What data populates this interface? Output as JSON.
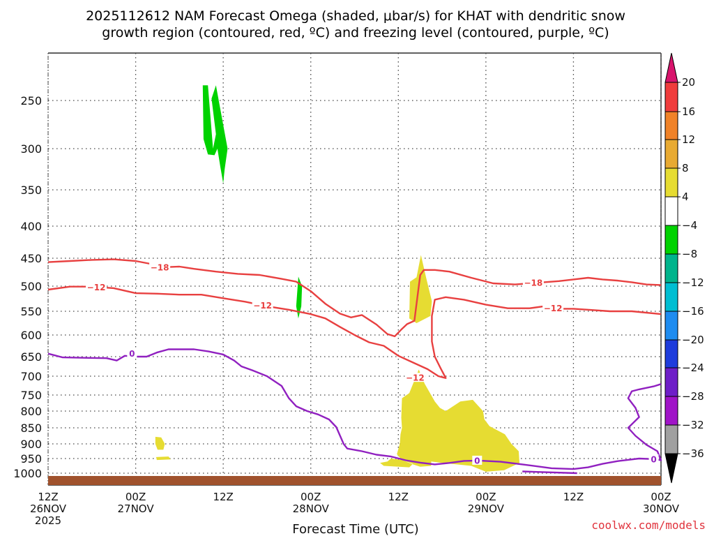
{
  "chart_data": {
    "type": "heatmap",
    "title_line1": "2025112612 NAM Forecast Omega (shaded, μbar/s) for KHAT with dendritic snow",
    "title_line2": "growth region (contoured, red, ºC) and freezing level (contoured, purple, ºC)",
    "xlabel": "Forecast Time (UTC)",
    "ylabel": "",
    "credit": "coolwx.com/models",
    "x_range_hours": [
      0,
      84
    ],
    "y_range_hpa": [
      200,
      1040
    ],
    "x_ticks": [
      {
        "h": 0,
        "line1": "12Z",
        "line2": "26NOV",
        "line3": "2025"
      },
      {
        "h": 12,
        "line1": "00Z",
        "line2": "27NOV",
        "line3": ""
      },
      {
        "h": 24,
        "line1": "12Z",
        "line2": "",
        "line3": ""
      },
      {
        "h": 36,
        "line1": "00Z",
        "line2": "28NOV",
        "line3": ""
      },
      {
        "h": 48,
        "line1": "12Z",
        "line2": "",
        "line3": ""
      },
      {
        "h": 60,
        "line1": "00Z",
        "line2": "29NOV",
        "line3": ""
      },
      {
        "h": 72,
        "line1": "12Z",
        "line2": "",
        "line3": ""
      },
      {
        "h": 84,
        "line1": "00Z",
        "line2": "30NOV",
        "line3": ""
      }
    ],
    "y_ticks": [
      250,
      300,
      350,
      400,
      450,
      500,
      550,
      600,
      650,
      700,
      750,
      800,
      850,
      900,
      950,
      1000
    ],
    "colorbar": {
      "labels": [
        "20",
        "16",
        "12",
        "8",
        "4",
        "−4",
        "−8",
        "−12",
        "−16",
        "−20",
        "−24",
        "−28",
        "−32",
        "−36"
      ],
      "bands": [
        {
          "from": 20,
          "color": "#d8146c"
        },
        {
          "from": 16,
          "color": "#f03c3c"
        },
        {
          "from": 12,
          "color": "#f08228"
        },
        {
          "from": 8,
          "color": "#e8aa32"
        },
        {
          "from": 4,
          "color": "#e6dc32"
        },
        {
          "from": -4,
          "color": "#ffffff"
        },
        {
          "from": -8,
          "color": "#00d200"
        },
        {
          "from": -12,
          "color": "#00b48c"
        },
        {
          "from": -16,
          "color": "#00bed2"
        },
        {
          "from": -20,
          "color": "#1e8cf0"
        },
        {
          "from": -24,
          "color": "#1e3cdc"
        },
        {
          "from": -28,
          "color": "#6e1ec8"
        },
        {
          "from": -32,
          "color": "#a014c8"
        },
        {
          "from": -36,
          "color": "#a0a0a0"
        },
        {
          "from": -99,
          "color": "#000000"
        }
      ]
    },
    "omega_regions": [
      {
        "value": -6,
        "color": "#00d200",
        "points": [
          [
            21.2,
            234
          ],
          [
            21.9,
            234
          ],
          [
            22.6,
            300
          ],
          [
            23.0,
            285
          ],
          [
            22.4,
            248
          ],
          [
            23.0,
            234
          ],
          [
            24.6,
            300
          ],
          [
            24.2,
            325
          ],
          [
            24.0,
            342
          ],
          [
            23.6,
            322
          ],
          [
            23.2,
            300
          ],
          [
            22.8,
            308
          ],
          [
            21.9,
            307
          ],
          [
            21.3,
            290
          ]
        ]
      },
      {
        "value": -6,
        "color": "#00d200",
        "points": [
          [
            34.3,
            483
          ],
          [
            34.8,
            500
          ],
          [
            34.7,
            540
          ],
          [
            34.3,
            565
          ],
          [
            34.0,
            540
          ]
        ]
      },
      {
        "value": 5,
        "color": "#e6dc32",
        "points": [
          [
            50.5,
            484
          ],
          [
            51.1,
            445
          ],
          [
            51.8,
            484
          ],
          [
            52.6,
            530
          ],
          [
            52.4,
            560
          ],
          [
            50.5,
            575
          ],
          [
            49.5,
            565
          ],
          [
            49.6,
            492
          ]
        ]
      },
      {
        "value": 5,
        "color": "#e6dc32",
        "points": [
          [
            48.5,
            760
          ],
          [
            49.5,
            745
          ],
          [
            50.8,
            683
          ],
          [
            51.6,
            720
          ],
          [
            53.0,
            770
          ],
          [
            53.7,
            790
          ],
          [
            54.5,
            800
          ],
          [
            56.5,
            770
          ],
          [
            58.2,
            765
          ],
          [
            59.6,
            800
          ],
          [
            59.8,
            825
          ],
          [
            60.5,
            845
          ],
          [
            62.6,
            870
          ],
          [
            63.5,
            900
          ],
          [
            64.5,
            925
          ],
          [
            64.6,
            965
          ],
          [
            62.5,
            990
          ],
          [
            60.0,
            995
          ],
          [
            59.0,
            985
          ],
          [
            58.0,
            975
          ],
          [
            56.0,
            970
          ],
          [
            54.0,
            965
          ],
          [
            52.5,
            960
          ],
          [
            52.5,
            975
          ],
          [
            51.0,
            978
          ],
          [
            50.0,
            970
          ],
          [
            48.5,
            955
          ],
          [
            47.0,
            950
          ],
          [
            46.5,
            960
          ],
          [
            45.5,
            965
          ],
          [
            46.0,
            975
          ],
          [
            49.5,
            980
          ],
          [
            50.0,
            968
          ],
          [
            48.5,
            955
          ],
          [
            47.8,
            935
          ],
          [
            48.2,
            900
          ],
          [
            48.3,
            870
          ],
          [
            48.5,
            850
          ],
          [
            48.4,
            820
          ]
        ]
      },
      {
        "value": 5,
        "color": "#e6dc32",
        "points": [
          [
            14.7,
            878
          ],
          [
            15.5,
            880
          ],
          [
            16.0,
            900
          ],
          [
            15.8,
            920
          ],
          [
            15.0,
            920
          ],
          [
            14.7,
            900
          ]
        ]
      },
      {
        "value": 5,
        "color": "#e6dc32",
        "points": [
          [
            14.8,
            945
          ],
          [
            16.5,
            943
          ],
          [
            16.8,
            953
          ],
          [
            14.9,
            955
          ]
        ]
      }
    ],
    "contours": [
      {
        "label": "-18",
        "color": "#e84040",
        "points": [
          [
            0,
            457
          ],
          [
            3,
            455
          ],
          [
            6,
            453
          ],
          [
            9,
            452
          ],
          [
            12,
            455
          ],
          [
            14,
            460
          ],
          [
            16,
            466
          ],
          [
            18,
            465
          ],
          [
            20,
            469
          ],
          [
            23,
            474
          ],
          [
            26,
            478
          ],
          [
            29,
            480
          ],
          [
            32,
            487
          ],
          [
            34,
            492
          ],
          [
            36,
            510
          ],
          [
            38,
            535
          ],
          [
            40,
            555
          ],
          [
            41.5,
            563
          ],
          [
            43,
            558
          ],
          [
            45,
            578
          ],
          [
            46.5,
            598
          ],
          [
            47.5,
            603
          ],
          [
            48.5,
            587
          ],
          [
            49.2,
            577
          ],
          [
            50.2,
            570
          ],
          [
            50.6,
            523
          ],
          [
            51.0,
            480
          ],
          [
            51.5,
            471
          ],
          [
            53,
            471
          ],
          [
            55,
            474
          ],
          [
            58,
            485
          ],
          [
            61,
            495
          ],
          [
            64,
            497
          ],
          [
            67,
            494
          ],
          [
            70,
            491
          ],
          [
            72,
            488
          ],
          [
            74,
            485
          ],
          [
            76,
            488
          ],
          [
            78,
            490
          ],
          [
            80,
            493
          ],
          [
            82,
            497
          ],
          [
            84,
            498
          ]
        ],
        "label_hours": [
          [
            15.3,
            466
          ],
          [
            66.5,
            494
          ]
        ]
      },
      {
        "label": "-12",
        "color": "#e84040",
        "points": [
          [
            0,
            507
          ],
          [
            3,
            501
          ],
          [
            6,
            501
          ],
          [
            9,
            504
          ],
          [
            12,
            514
          ],
          [
            15,
            515
          ],
          [
            18,
            517
          ],
          [
            21,
            517
          ],
          [
            24,
            524
          ],
          [
            27,
            531
          ],
          [
            30,
            540
          ],
          [
            33,
            547
          ],
          [
            36,
            556
          ],
          [
            38,
            565
          ],
          [
            40,
            583
          ],
          [
            42,
            600
          ],
          [
            44,
            617
          ],
          [
            46,
            625
          ],
          [
            48,
            648
          ],
          [
            50,
            665
          ],
          [
            52,
            682
          ],
          [
            53.5,
            700
          ],
          [
            54.5,
            705
          ],
          [
            53.8,
            680
          ],
          [
            53.0,
            650
          ],
          [
            52.6,
            615
          ],
          [
            52.6,
            560
          ],
          [
            53.0,
            527
          ],
          [
            54.5,
            522
          ],
          [
            57,
            527
          ],
          [
            60,
            537
          ],
          [
            63,
            544
          ],
          [
            66,
            544
          ],
          [
            68,
            540
          ],
          [
            70,
            545
          ],
          [
            72,
            545
          ],
          [
            74,
            547
          ],
          [
            77,
            550
          ],
          [
            80,
            550
          ],
          [
            84,
            556
          ]
        ],
        "label_hours": [
          [
            6.6,
            502
          ],
          [
            29.4,
            538
          ],
          [
            69.2,
            544
          ],
          [
            50.3,
            704
          ]
        ]
      },
      {
        "label": "0",
        "color": "#9020c0",
        "points": [
          [
            0,
            643
          ],
          [
            2,
            652
          ],
          [
            5,
            653
          ],
          [
            8,
            654
          ],
          [
            9.4,
            660
          ],
          [
            10.5,
            648
          ],
          [
            12,
            650
          ],
          [
            13.5,
            650
          ],
          [
            15,
            640
          ],
          [
            16.5,
            633
          ],
          [
            18,
            633
          ],
          [
            20,
            633
          ],
          [
            22,
            638
          ],
          [
            24,
            645
          ],
          [
            25.5,
            660
          ],
          [
            26.5,
            675
          ],
          [
            28,
            685
          ],
          [
            30,
            700
          ],
          [
            32,
            726
          ],
          [
            33,
            760
          ],
          [
            34,
            785
          ],
          [
            35.5,
            800
          ],
          [
            37,
            810
          ],
          [
            38.5,
            825
          ],
          [
            39.5,
            848
          ],
          [
            40.5,
            900
          ],
          [
            41,
            916
          ],
          [
            43,
            925
          ],
          [
            45,
            937
          ],
          [
            47,
            943
          ],
          [
            49,
            956
          ],
          [
            51,
            964
          ],
          [
            53,
            970
          ],
          [
            55,
            965
          ],
          [
            57,
            958
          ],
          [
            59,
            957
          ],
          [
            62,
            961
          ],
          [
            65,
            970
          ],
          [
            69,
            983
          ],
          [
            72,
            986
          ],
          [
            74,
            980
          ],
          [
            76,
            968
          ],
          [
            78,
            959
          ],
          [
            81,
            950
          ],
          [
            83,
            952
          ],
          [
            84,
            956
          ],
          [
            83.5,
            925
          ],
          [
            82,
            903
          ],
          [
            80.5,
            875
          ],
          [
            79.5,
            850
          ],
          [
            81,
            818
          ],
          [
            80.5,
            790
          ],
          [
            79.5,
            760
          ],
          [
            80,
            740
          ],
          [
            81,
            735
          ],
          [
            83,
            727
          ],
          [
            84,
            721
          ]
        ],
        "label_hours": [
          [
            11.5,
            643
          ],
          [
            58.8,
            957
          ],
          [
            83,
            952
          ]
        ]
      },
      {
        "label": "",
        "color": "#9020c0",
        "points": [
          [
            65,
            994
          ],
          [
            72.5,
            1000
          ]
        ],
        "label_hours": []
      }
    ]
  }
}
